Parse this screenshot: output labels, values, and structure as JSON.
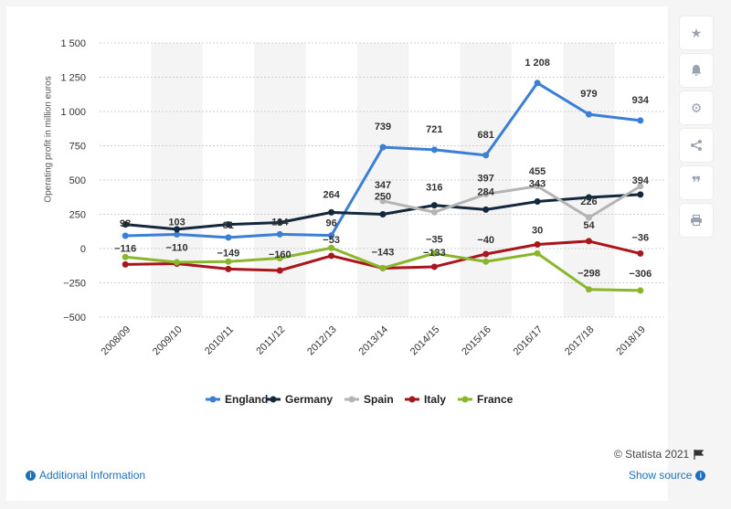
{
  "chart_data": {
    "type": "line",
    "categories": [
      "2008/09",
      "2009/10",
      "2010/11",
      "2011/12",
      "2012/13",
      "2013/14",
      "2014/15",
      "2015/16",
      "2016/17",
      "2017/18",
      "2018/19"
    ],
    "ylabel": "Operating profit in million euros",
    "ylim": [
      -500,
      1500
    ],
    "yticks": [
      -500,
      -250,
      0,
      250,
      500,
      750,
      1000,
      1250,
      1500
    ],
    "ytick_labels": [
      "−500",
      "−250",
      "0",
      "250",
      "500",
      "750",
      "1 000",
      "1 250",
      "1 500"
    ],
    "grid": true,
    "legend_position": "bottom",
    "series": [
      {
        "name": "England",
        "color": "#3a7fd5",
        "values": [
          93,
          103,
          81,
          104,
          96,
          739,
          721,
          681,
          1208,
          979,
          934
        ],
        "labels": [
          "93",
          "103",
          "81",
          "104",
          "96",
          "739",
          "721",
          "681",
          "1 208",
          "979",
          "934"
        ]
      },
      {
        "name": "Germany",
        "color": "#13283c",
        "values": [
          176,
          141,
          176,
          190,
          264,
          250,
          316,
          284,
          343,
          373,
          394
        ],
        "labels": [
          "",
          "",
          "",
          "",
          "264",
          "250",
          "316",
          "284",
          "343",
          "",
          "394"
        ]
      },
      {
        "name": "Spain",
        "color": "#b4b4b4",
        "values": [
          null,
          null,
          null,
          null,
          null,
          347,
          265,
          397,
          455,
          226,
          455
        ],
        "labels": [
          "",
          "",
          "",
          "",
          "",
          "347",
          "",
          "397",
          "455",
          "226",
          ""
        ]
      },
      {
        "name": "Italy",
        "color": "#a8151b",
        "values": [
          -116,
          -110,
          -149,
          -160,
          -53,
          -143,
          -133,
          -40,
          30,
          54,
          -36
        ],
        "labels": [
          "−116",
          "−110",
          "−149",
          "−160",
          "−53",
          "−143",
          "−133",
          "−40",
          "30",
          "54",
          "−36"
        ]
      },
      {
        "name": "France",
        "color": "#8ab62b",
        "values": [
          -62,
          -100,
          -95,
          -70,
          5,
          -143,
          -35,
          -95,
          -35,
          -298,
          -306
        ],
        "labels": [
          "",
          "",
          "",
          "",
          "",
          "",
          "−35",
          "",
          "",
          "−298",
          "−306"
        ]
      }
    ]
  },
  "toolbar": {
    "icons": [
      "star-icon",
      "bell-icon",
      "gear-icon",
      "share-icon",
      "quote-icon",
      "print-icon"
    ]
  },
  "footer": {
    "credit": "© Statista 2021",
    "additional_info": "Additional Information",
    "show_source": "Show source"
  }
}
